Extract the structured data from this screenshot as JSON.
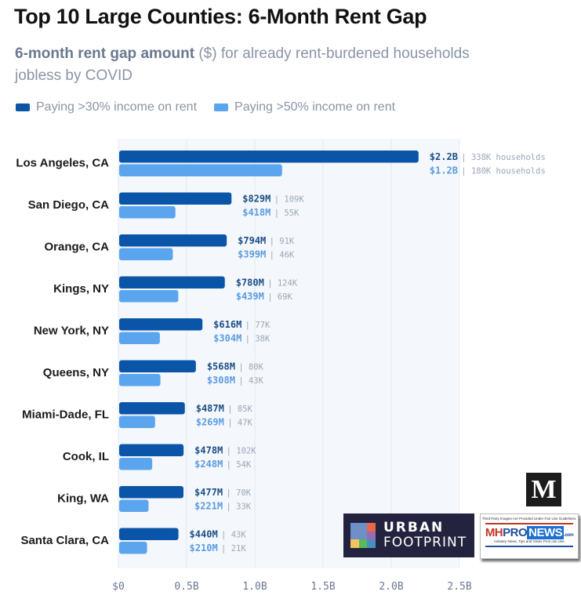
{
  "header": {
    "title": "Top 10 Large Counties: 6-Month Rent Gap",
    "subtitle_bold": "6-month rent gap amount",
    "subtitle_rest": " ($) for already rent-burdened households jobless by COVID"
  },
  "colors": {
    "series_30": "#0a55a8",
    "series_50": "#5aa5ee",
    "label_30": "#1c4d86",
    "label_50": "#5b9be0",
    "plot_bg": "#f4f8fc",
    "grid": "#e3e9f1"
  },
  "logos": {
    "m_logo": "M",
    "urban_footprint_line1": "URBAN",
    "urban_footprint_line2": "FOOTPRINT",
    "mhpronews_top": "Third Party Images Are Provided Under Fair Use Guidelines.",
    "mhpronews_mh": "MH",
    "mhpronews_pro": "PRO",
    "mhpronews_news": "NEWS",
    "mhpronews_com": ".com",
    "mhpronews_tag": "Industry News, Tips and Views Pros can Use"
  },
  "chart_data": {
    "type": "bar",
    "orientation": "horizontal",
    "title": "Top 10 Large Counties: 6-Month Rent Gap",
    "subtitle": "6-month rent gap amount ($) for already rent-burdened households jobless by COVID",
    "xlabel": "",
    "ylabel": "",
    "xlim": [
      0,
      2.5
    ],
    "x_unit": "B",
    "grid": true,
    "legend_position": "top-left",
    "ticks": [
      "$0",
      "0.5B",
      "1.0B",
      "1.5B",
      "2.0B",
      "2.5B"
    ],
    "tick_values": [
      0,
      0.5,
      1.0,
      1.5,
      2.0,
      2.5
    ],
    "categories": [
      "Los Angeles, CA",
      "San Diego, CA",
      "Orange, CA",
      "Kings, NY",
      "New York, NY",
      "Queens, NY",
      "Miami-Dade, FL",
      "Cook, IL",
      "King, WA",
      "Santa Clara, CA"
    ],
    "series": [
      {
        "name": "Paying >30% income on rent",
        "values": [
          2.2,
          0.829,
          0.794,
          0.78,
          0.616,
          0.568,
          0.487,
          0.478,
          0.477,
          0.44
        ],
        "labels": [
          "$2.2B",
          "$829M",
          "$794M",
          "$780M",
          "$616M",
          "$568M",
          "$487M",
          "$478M",
          "$477M",
          "$440M"
        ],
        "households": [
          "338K households",
          "109K",
          "91K",
          "124K",
          "77K",
          "80K",
          "85K",
          "102K",
          "70K",
          "43K"
        ]
      },
      {
        "name": "Paying >50% income on rent",
        "values": [
          1.2,
          0.418,
          0.399,
          0.439,
          0.304,
          0.308,
          0.269,
          0.248,
          0.221,
          0.21
        ],
        "labels": [
          "$1.2B",
          "$418M",
          "$399M",
          "$439M",
          "$304M",
          "$308M",
          "$269M",
          "$248M",
          "$221M",
          "$210M"
        ],
        "households": [
          "180K households",
          "55K",
          "46K",
          "69K",
          "38K",
          "43K",
          "47K",
          "54K",
          "33K",
          "21K"
        ]
      }
    ]
  }
}
